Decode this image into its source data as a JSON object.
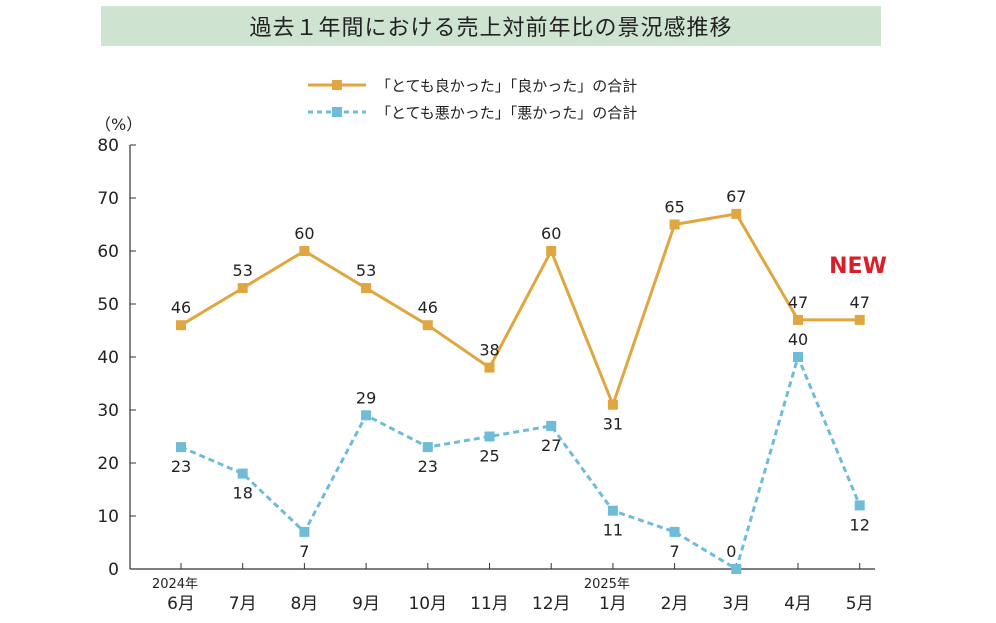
{
  "chart_data": {
    "type": "line",
    "title": "過去１年間における売上対前年比の景況感推移",
    "ylabel": "（%）",
    "ylim": [
      0,
      80
    ],
    "yticks": [
      0,
      10,
      20,
      30,
      40,
      50,
      60,
      70,
      80
    ],
    "categories": [
      "6月",
      "7月",
      "8月",
      "9月",
      "10月",
      "11月",
      "12月",
      "1月",
      "2月",
      "3月",
      "4月",
      "5月"
    ],
    "year_labels": [
      {
        "category_index": 0,
        "text": "2024年"
      },
      {
        "category_index": 7,
        "text": "2025年"
      }
    ],
    "series": [
      {
        "name": "「とても良かった」「良かった」の合計",
        "color": "#e0a640",
        "style": "solid",
        "values": [
          46,
          53,
          60,
          53,
          46,
          38,
          60,
          31,
          65,
          67,
          47,
          47
        ]
      },
      {
        "name": "「とても悪かった」「悪かった」の合計",
        "color": "#6fbcd9",
        "style": "dashed",
        "values": [
          23,
          18,
          7,
          29,
          23,
          25,
          27,
          11,
          7,
          0,
          40,
          12
        ]
      }
    ],
    "annotation": {
      "text": "NEW",
      "color": "#d8202a"
    },
    "grid": false,
    "legend_placement": "top-center"
  }
}
